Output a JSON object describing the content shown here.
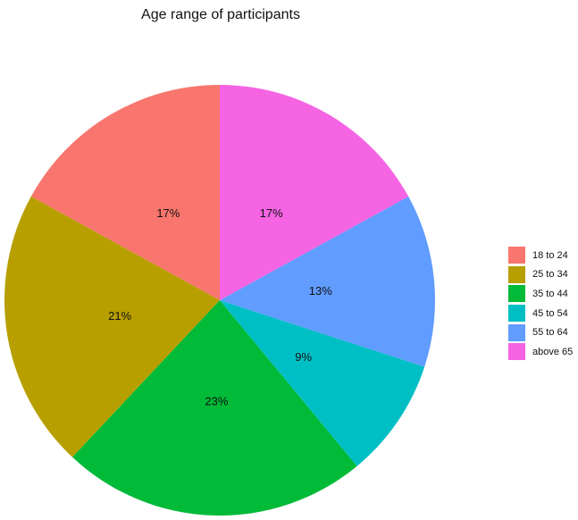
{
  "chart_data": {
    "type": "pie",
    "title": "Age range of participants",
    "categories": [
      "18 to 24",
      "25 to 34",
      "35 to 44",
      "45 to 54",
      "55 to 64",
      "above 65"
    ],
    "values": [
      17,
      21,
      23,
      9,
      13,
      17
    ],
    "labels": [
      "17%",
      "21%",
      "23%",
      "9%",
      "13%",
      "17%"
    ],
    "colors": [
      "#F8766D",
      "#B79F00",
      "#00BA38",
      "#00BFC4",
      "#619CFF",
      "#F564E3"
    ],
    "legend_position": "right",
    "direction": "counterclockwise from 12 o'clock"
  }
}
